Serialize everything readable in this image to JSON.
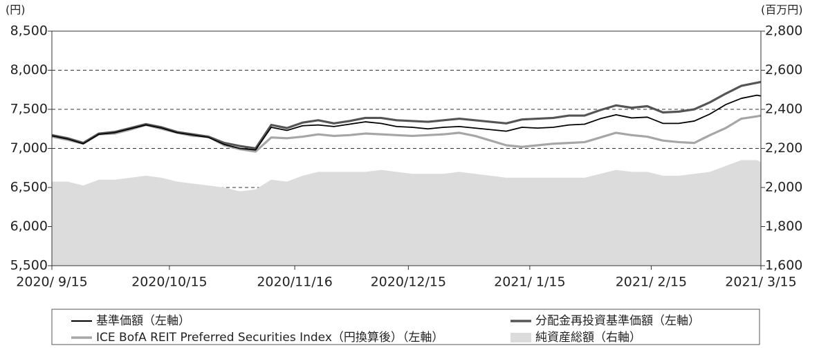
{
  "chart_data": {
    "type": "line",
    "y_unit_label": "(円)",
    "y2_unit_label": "(百万円)",
    "x": [
      "2020-09-15",
      "2020-09-19",
      "2020-09-23",
      "2020-09-27",
      "2020-10-01",
      "2020-10-05",
      "2020-10-09",
      "2020-10-13",
      "2020-10-17",
      "2020-10-21",
      "2020-10-25",
      "2020-10-29",
      "2020-11-02",
      "2020-11-06",
      "2020-11-10",
      "2020-11-14",
      "2020-11-18",
      "2020-11-22",
      "2020-11-26",
      "2020-11-30",
      "2020-12-04",
      "2020-12-08",
      "2020-12-12",
      "2020-12-16",
      "2020-12-20",
      "2020-12-24",
      "2020-12-28",
      "2021-01-01",
      "2021-01-05",
      "2021-01-09",
      "2021-01-13",
      "2021-01-17",
      "2021-01-21",
      "2021-01-25",
      "2021-01-29",
      "2021-02-02",
      "2021-02-06",
      "2021-02-10",
      "2021-02-14",
      "2021-02-18",
      "2021-02-22",
      "2021-02-26",
      "2021-03-02",
      "2021-03-06",
      "2021-03-10",
      "2021-03-14",
      "2021-03-15"
    ],
    "xlim": [
      "2020-09-15",
      "2021-03-15"
    ],
    "xticks": [
      {
        "value": "2020-09-15",
        "label": "2020/ 9/15"
      },
      {
        "value": "2020-10-15",
        "label": "2020/10/15"
      },
      {
        "value": "2020-11-16",
        "label": "2020/11/16"
      },
      {
        "value": "2020-12-15",
        "label": "2020/12/15"
      },
      {
        "value": "2021-01-15",
        "label": "2021/ 1/15"
      },
      {
        "value": "2021-02-15",
        "label": "2021/ 2/15"
      },
      {
        "value": "2021-03-15",
        "label": "2021/ 3/15"
      }
    ],
    "ylim": [
      5500,
      8500
    ],
    "yticks": [
      {
        "value": 5500,
        "label": "5,500"
      },
      {
        "value": 6000,
        "label": "6,000"
      },
      {
        "value": 6500,
        "label": "6,500"
      },
      {
        "value": 7000,
        "label": "7,000"
      },
      {
        "value": 7500,
        "label": "7,500"
      },
      {
        "value": 8000,
        "label": "8,000"
      },
      {
        "value": 8500,
        "label": "8,500"
      }
    ],
    "y2lim": [
      1600,
      2800
    ],
    "y2ticks": [
      {
        "value": 1600,
        "label": "1,600"
      },
      {
        "value": 1800,
        "label": "1,800"
      },
      {
        "value": 2000,
        "label": "2,000"
      },
      {
        "value": 2200,
        "label": "2,200"
      },
      {
        "value": 2400,
        "label": "2,400"
      },
      {
        "value": 2600,
        "label": "2,600"
      },
      {
        "value": 2800,
        "label": "2,800"
      }
    ],
    "grid": true,
    "series": [
      {
        "name": "純資産総額（右軸）",
        "type": "area",
        "axis": "y2",
        "color": "#dcdcdc",
        "values": [
          2030,
          2030,
          2010,
          2040,
          2040,
          2050,
          2060,
          2050,
          2030,
          2020,
          2010,
          2000,
          1980,
          1990,
          2040,
          2030,
          2060,
          2080,
          2080,
          2080,
          2080,
          2090,
          2080,
          2070,
          2070,
          2070,
          2080,
          2070,
          2060,
          2050,
          2050,
          2050,
          2050,
          2050,
          2050,
          2070,
          2090,
          2080,
          2080,
          2060,
          2060,
          2070,
          2080,
          2110,
          2140,
          2140,
          2130
        ]
      },
      {
        "name": "ICE BofA REIT Preferred Securities Index（円換算後）（左軸）",
        "color": "#a6a6a6",
        "values": [
          7150,
          7110,
          7060,
          7180,
          7190,
          7240,
          7300,
          7250,
          7200,
          7160,
          7150,
          7040,
          6990,
          6960,
          7140,
          7130,
          7150,
          7180,
          7160,
          7170,
          7190,
          7180,
          7170,
          7160,
          7170,
          7180,
          7200,
          7160,
          7100,
          7040,
          7020,
          7040,
          7060,
          7070,
          7080,
          7140,
          7200,
          7170,
          7150,
          7100,
          7080,
          7070,
          7170,
          7260,
          7380,
          7410,
          7420
        ]
      },
      {
        "name": "分配金再投資基準価額（左軸）",
        "color": "#555555",
        "values": [
          7170,
          7130,
          7070,
          7190,
          7210,
          7260,
          7310,
          7270,
          7210,
          7180,
          7150,
          7070,
          7030,
          7000,
          7300,
          7260,
          7330,
          7360,
          7320,
          7350,
          7390,
          7390,
          7360,
          7350,
          7340,
          7360,
          7380,
          7360,
          7340,
          7320,
          7370,
          7380,
          7390,
          7420,
          7420,
          7490,
          7550,
          7520,
          7540,
          7460,
          7470,
          7500,
          7590,
          7700,
          7800,
          7840,
          7850
        ]
      },
      {
        "name": "基準価額（左軸）",
        "color": "#000000",
        "values": [
          7160,
          7120,
          7060,
          7180,
          7200,
          7250,
          7300,
          7260,
          7200,
          7170,
          7140,
          7050,
          7000,
          6980,
          7270,
          7230,
          7290,
          7300,
          7280,
          7310,
          7340,
          7320,
          7280,
          7270,
          7250,
          7270,
          7280,
          7260,
          7240,
          7220,
          7270,
          7260,
          7270,
          7300,
          7310,
          7380,
          7430,
          7390,
          7400,
          7320,
          7320,
          7350,
          7440,
          7560,
          7640,
          7680,
          7670
        ]
      }
    ]
  }
}
